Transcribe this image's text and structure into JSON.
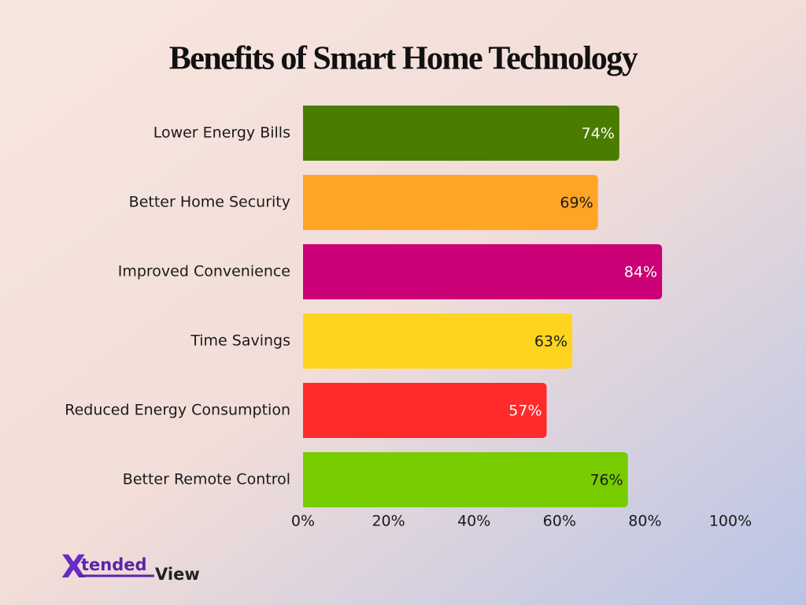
{
  "chart_data": {
    "type": "bar",
    "orientation": "horizontal",
    "title": "Benefits of Smart Home Technology",
    "categories": [
      "Lower Energy Bills",
      "Better Home Security",
      "Improved Convenience",
      "Time Savings",
      "Reduced Energy Consumption",
      "Better Remote Control"
    ],
    "values": [
      74,
      69,
      84,
      63,
      57,
      76
    ],
    "value_labels": [
      "74%",
      "69%",
      "84%",
      "63%",
      "57%",
      "76%"
    ],
    "colors": [
      "#4a7c00",
      "#ffa424",
      "#cc0077",
      "#ffd420",
      "#ff2a2a",
      "#77cc00"
    ],
    "xlim": [
      0,
      100
    ],
    "xticks": [
      {
        "value": 0,
        "label": "0%"
      },
      {
        "value": 20,
        "label": "20%"
      },
      {
        "value": 40,
        "label": "40%"
      },
      {
        "value": 60,
        "label": "60%"
      },
      {
        "value": 80,
        "label": "80%"
      },
      {
        "value": 100,
        "label": "100%"
      }
    ],
    "grid": false
  },
  "logo": {
    "mark": "X",
    "text": "tended",
    "suffix": "View"
  }
}
